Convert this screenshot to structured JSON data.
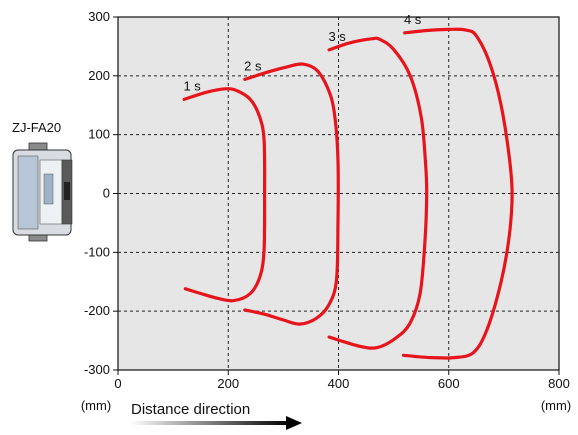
{
  "device": {
    "label": "ZJ-FA20"
  },
  "chart_data": {
    "type": "line",
    "title": "",
    "xlabel": "Distance direction",
    "ylabel": "",
    "x_unit": "(mm)",
    "x_unit_right": "(mm)",
    "y_unit": "(mm)",
    "xlim": [
      0,
      800
    ],
    "ylim": [
      -300,
      300
    ],
    "x_ticks": [
      0,
      200,
      400,
      600,
      800
    ],
    "y_ticks": [
      300,
      200,
      100,
      0,
      -100,
      -200,
      -300
    ],
    "grid": true,
    "series": [
      {
        "name": "1 s",
        "color": "#e8141c",
        "points": [
          [
            120,
            160
          ],
          [
            160,
            172
          ],
          [
            195,
            178
          ],
          [
            215,
            175
          ],
          [
            240,
            160
          ],
          [
            257,
            130
          ],
          [
            265,
            90
          ],
          [
            266,
            0
          ],
          [
            265,
            -95
          ],
          [
            258,
            -140
          ],
          [
            240,
            -170
          ],
          [
            210,
            -182
          ],
          [
            180,
            -178
          ],
          [
            150,
            -170
          ],
          [
            122,
            -162
          ]
        ]
      },
      {
        "name": "2 s",
        "color": "#e8141c",
        "points": [
          [
            230,
            194
          ],
          [
            270,
            206
          ],
          [
            310,
            216
          ],
          [
            335,
            220
          ],
          [
            360,
            210
          ],
          [
            380,
            180
          ],
          [
            392,
            140
          ],
          [
            399,
            60
          ],
          [
            399,
            -60
          ],
          [
            396,
            -150
          ],
          [
            382,
            -190
          ],
          [
            360,
            -212
          ],
          [
            330,
            -222
          ],
          [
            300,
            -215
          ],
          [
            265,
            -205
          ],
          [
            230,
            -198
          ]
        ]
      },
      {
        "name": "3 s",
        "color": "#e8141c",
        "points": [
          [
            383,
            244
          ],
          [
            420,
            256
          ],
          [
            460,
            263
          ],
          [
            475,
            262
          ],
          [
            500,
            245
          ],
          [
            530,
            200
          ],
          [
            550,
            130
          ],
          [
            558,
            50
          ],
          [
            560,
            0
          ],
          [
            557,
            -80
          ],
          [
            548,
            -170
          ],
          [
            530,
            -220
          ],
          [
            505,
            -245
          ],
          [
            470,
            -262
          ],
          [
            440,
            -260
          ],
          [
            410,
            -252
          ],
          [
            383,
            -244
          ]
        ]
      },
      {
        "name": "4 s",
        "color": "#e8141c",
        "points": [
          [
            520,
            273
          ],
          [
            560,
            277
          ],
          [
            600,
            279
          ],
          [
            630,
            278
          ],
          [
            650,
            268
          ],
          [
            675,
            220
          ],
          [
            695,
            150
          ],
          [
            710,
            60
          ],
          [
            715,
            0
          ],
          [
            710,
            -70
          ],
          [
            695,
            -150
          ],
          [
            670,
            -230
          ],
          [
            645,
            -270
          ],
          [
            610,
            -279
          ],
          [
            570,
            -279
          ],
          [
            540,
            -277
          ],
          [
            518,
            -275
          ]
        ]
      }
    ]
  }
}
